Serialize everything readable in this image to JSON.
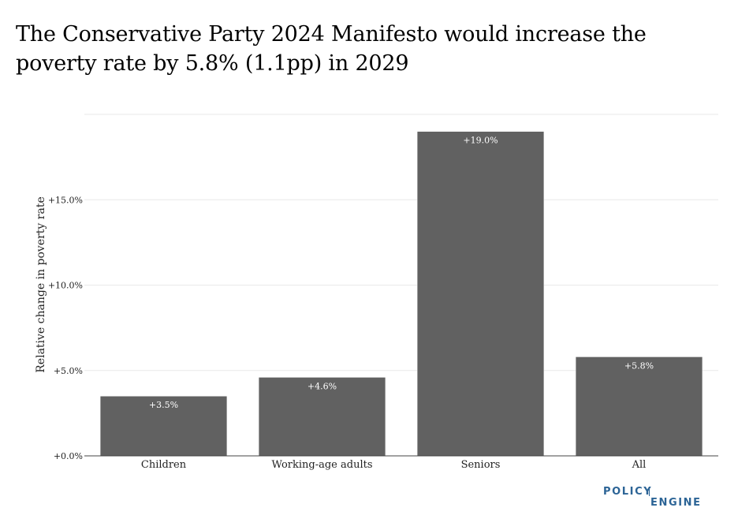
{
  "chart_data": {
    "type": "bar",
    "title": "The Conservative Party 2024 Manifesto would increase the poverty rate by 5.8% (1.1pp) in 2029",
    "xlabel": "",
    "ylabel": "Relative change in poverty rate",
    "categories": [
      "Children",
      "Working-age adults",
      "Seniors",
      "All"
    ],
    "values": [
      3.5,
      4.6,
      19.0,
      5.8
    ],
    "data_labels": [
      "+3.5%",
      "+4.6%",
      "+19.0%",
      "+5.8%"
    ],
    "ylim": [
      0,
      20
    ],
    "yticks": [
      0,
      5,
      10,
      15
    ],
    "ytick_labels": [
      "+0.0%",
      "+5.0%",
      "+10.0%",
      "+15.0%"
    ],
    "grid": true,
    "bar_color": "#616161",
    "legend": "none"
  },
  "logo": {
    "line1": "POLICY",
    "line2": "ENGINE",
    "color": "#2c6496"
  }
}
